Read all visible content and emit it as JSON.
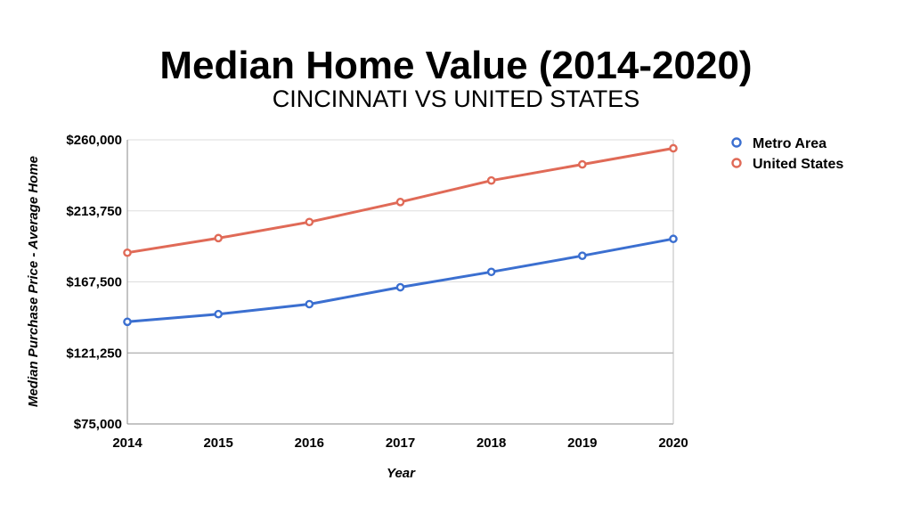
{
  "chart_data": {
    "type": "line",
    "title": "Median Home Value (2014-2020)",
    "subtitle": "CINCINNATI VS UNITED STATES",
    "xlabel": "Year",
    "ylabel": "Median Purchase Price - Average Home",
    "categories": [
      "2014",
      "2015",
      "2016",
      "2017",
      "2018",
      "2019",
      "2020"
    ],
    "ylim": [
      75000,
      260000
    ],
    "yticks": [
      75000,
      121250,
      167500,
      213750,
      260000
    ],
    "ytick_labels": [
      "$75,000",
      "$121,250",
      "$167,500",
      "$213,750",
      "$260,000"
    ],
    "grid": true,
    "legend_position": "top-right",
    "series": [
      {
        "name": "Metro Area",
        "color": "#3b6fd0",
        "values": [
          141500,
          146500,
          153000,
          164000,
          174000,
          184500,
          195500
        ]
      },
      {
        "name": "United States",
        "color": "#e06a57",
        "values": [
          186500,
          196000,
          206500,
          219500,
          233500,
          244000,
          254500
        ]
      }
    ]
  }
}
